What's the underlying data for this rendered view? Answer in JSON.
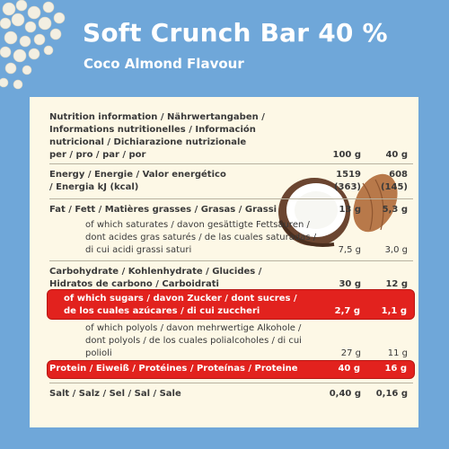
{
  "header": {
    "title": "Soft Crunch Bar 40 %",
    "subtitle": "Coco Almond Flavour"
  },
  "table": {
    "header_label": "Nutrition information / Nährwertangaben / Informations nutritionelles / Información nutricional / Dichiarazione nutrizionale per / pro / par / por",
    "col1": "100 g",
    "col2": "40 g",
    "energy": {
      "label": "Energy / Energie / Valor energético / Energia kJ (kcal)",
      "v1": "1519\n(363)",
      "v2": "608\n(145)"
    },
    "fat": {
      "label": "Fat / Fett / Matières grasses / Grasas / Grassi",
      "v1": "13 g",
      "v2": "5,3 g"
    },
    "saturates": {
      "label": "of which saturates / davon gesättigte Fettsäuren / dont acides gras saturés / de las cuales saturadas / di cui acidi grassi saturi",
      "v1": "7,5 g",
      "v2": "3,0 g"
    },
    "carbs": {
      "label": "Carbohydrate / Kohlenhydrate / Glucides / Hidratos de carbono / Carboidrati",
      "v1": "30 g",
      "v2": "12 g"
    },
    "sugars": {
      "label": "of which sugars / davon Zucker / dont sucres / de los cuales azúcares / di cui zuccheri",
      "v1": "2,7 g",
      "v2": "1,1 g"
    },
    "polyols": {
      "label": "of which polyols / davon mehrwertige Alkohole / dont polyols / de los cuales polialcoholes / di cui polioli",
      "v1": "27 g",
      "v2": "11 g"
    },
    "protein": {
      "label": "Protein / Eiweiß / Protéines / Proteínas / Proteine",
      "v1": "40 g",
      "v2": "16 g"
    },
    "salt": {
      "label": "Salt / Salz / Sel / Sal / Sale",
      "v1": "0,40 g",
      "v2": "0,16 g"
    }
  },
  "colors": {
    "background": "#6fa7d9",
    "card": "#fdf8e6",
    "highlight": "#e2221e"
  },
  "icons": [
    "crispy-beads-illustration",
    "coconut-icon",
    "almond-icon"
  ]
}
